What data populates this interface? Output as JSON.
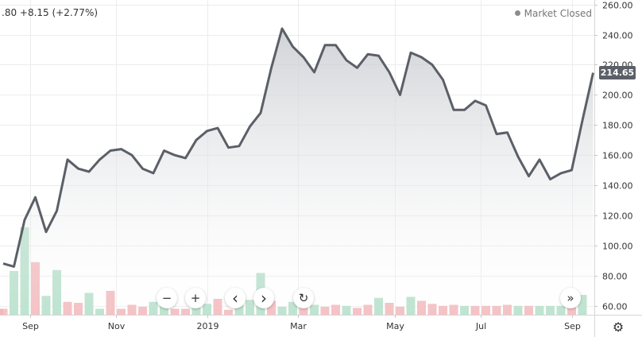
{
  "legend": {
    "quote": ".80  +8.15 (+2.77%)",
    "status": "Market Closed"
  },
  "price_label": "214.65",
  "controls": {
    "zoom_out": "−",
    "zoom_in": "+",
    "scroll_left": "‹",
    "scroll_right": "›",
    "reset": "↻",
    "jump_latest": "»",
    "settings_icon": "⚙"
  },
  "colors": {
    "line": "#5b5f67",
    "area_top": "#c9cbd0",
    "area_bottom": "#ffffff",
    "volume_up": "#b4dfc9",
    "volume_down": "#f2b8bc",
    "grid": "#ececec"
  },
  "chart_data": {
    "type": "area",
    "y_axis": {
      "ticks": [
        60,
        80,
        100,
        120,
        140,
        160,
        180,
        200,
        220,
        240,
        260
      ],
      "labels": [
        "60.00",
        "80.00",
        "100.00",
        "120.00",
        "140.00",
        "160.00",
        "180.00",
        "200.00",
        "220.00",
        "240.00",
        "260.00"
      ],
      "ylim": [
        54,
        263
      ]
    },
    "x_axis": {
      "labels": [
        "Sep",
        "Nov",
        "2019",
        "Mar",
        "May",
        "Jul",
        "Sep"
      ],
      "label_positions": [
        2.5,
        10.5,
        19,
        27.5,
        36.5,
        44.5,
        53
      ]
    },
    "price_series": {
      "x": [
        0,
        1,
        2,
        3,
        4,
        5,
        6,
        7,
        8,
        9,
        10,
        11,
        12,
        13,
        14,
        15,
        16,
        17,
        18,
        19,
        20,
        21,
        22,
        23,
        24,
        25,
        26,
        27,
        28,
        29,
        30,
        31,
        32,
        33,
        34,
        35,
        36,
        37,
        38,
        39,
        40,
        41,
        42,
        43,
        44,
        45,
        46,
        47,
        48,
        49,
        50,
        51,
        52,
        53,
        54,
        55
      ],
      "values": [
        88,
        86,
        117,
        132,
        109,
        123,
        157,
        151,
        149,
        157,
        163,
        164,
        160,
        151,
        148,
        163,
        160,
        158,
        170,
        176,
        178,
        165,
        166,
        179,
        188,
        218,
        244,
        232,
        225,
        215,
        233,
        233,
        223,
        218,
        227,
        226,
        215,
        200,
        228,
        225,
        220,
        210,
        190,
        190,
        196,
        193,
        174,
        175,
        159,
        146,
        157,
        144,
        148,
        150,
        183,
        214.65
      ]
    },
    "volume_series": {
      "x": [
        0,
        1,
        2,
        3,
        4,
        5,
        6,
        7,
        8,
        9,
        10,
        11,
        12,
        13,
        14,
        15,
        16,
        17,
        18,
        19,
        20,
        21,
        22,
        23,
        24,
        25,
        26,
        27,
        28,
        29,
        30,
        31,
        32,
        33,
        34,
        35,
        36,
        37,
        38,
        39,
        40,
        41,
        42,
        43,
        44,
        45,
        46,
        47,
        48,
        49,
        50,
        51,
        52,
        53,
        54
      ],
      "values": [
        6,
        44,
        88,
        53,
        19,
        45,
        13,
        12,
        22,
        6,
        24,
        6,
        10,
        8,
        13,
        10,
        6,
        6,
        18,
        11,
        16,
        5,
        10,
        15,
        42,
        14,
        8,
        13,
        10,
        10,
        8,
        10,
        9,
        7,
        10,
        17,
        12,
        8,
        18,
        14,
        11,
        9,
        10,
        9,
        9,
        9,
        9,
        10,
        9,
        9,
        9,
        9,
        9,
        10,
        20
      ],
      "direction": [
        "down",
        "up",
        "up",
        "down",
        "up",
        "up",
        "down",
        "down",
        "up",
        "up",
        "down",
        "down",
        "down",
        "down",
        "up",
        "up",
        "down",
        "down",
        "up",
        "up",
        "down",
        "down",
        "up",
        "up",
        "up",
        "down",
        "up",
        "up",
        "down",
        "up",
        "down",
        "down",
        "up",
        "down",
        "down",
        "up",
        "down",
        "down",
        "up",
        "down",
        "down",
        "down",
        "down",
        "up",
        "down",
        "down",
        "down",
        "down",
        "up",
        "down",
        "up",
        "up",
        "up",
        "down",
        "up"
      ]
    }
  }
}
